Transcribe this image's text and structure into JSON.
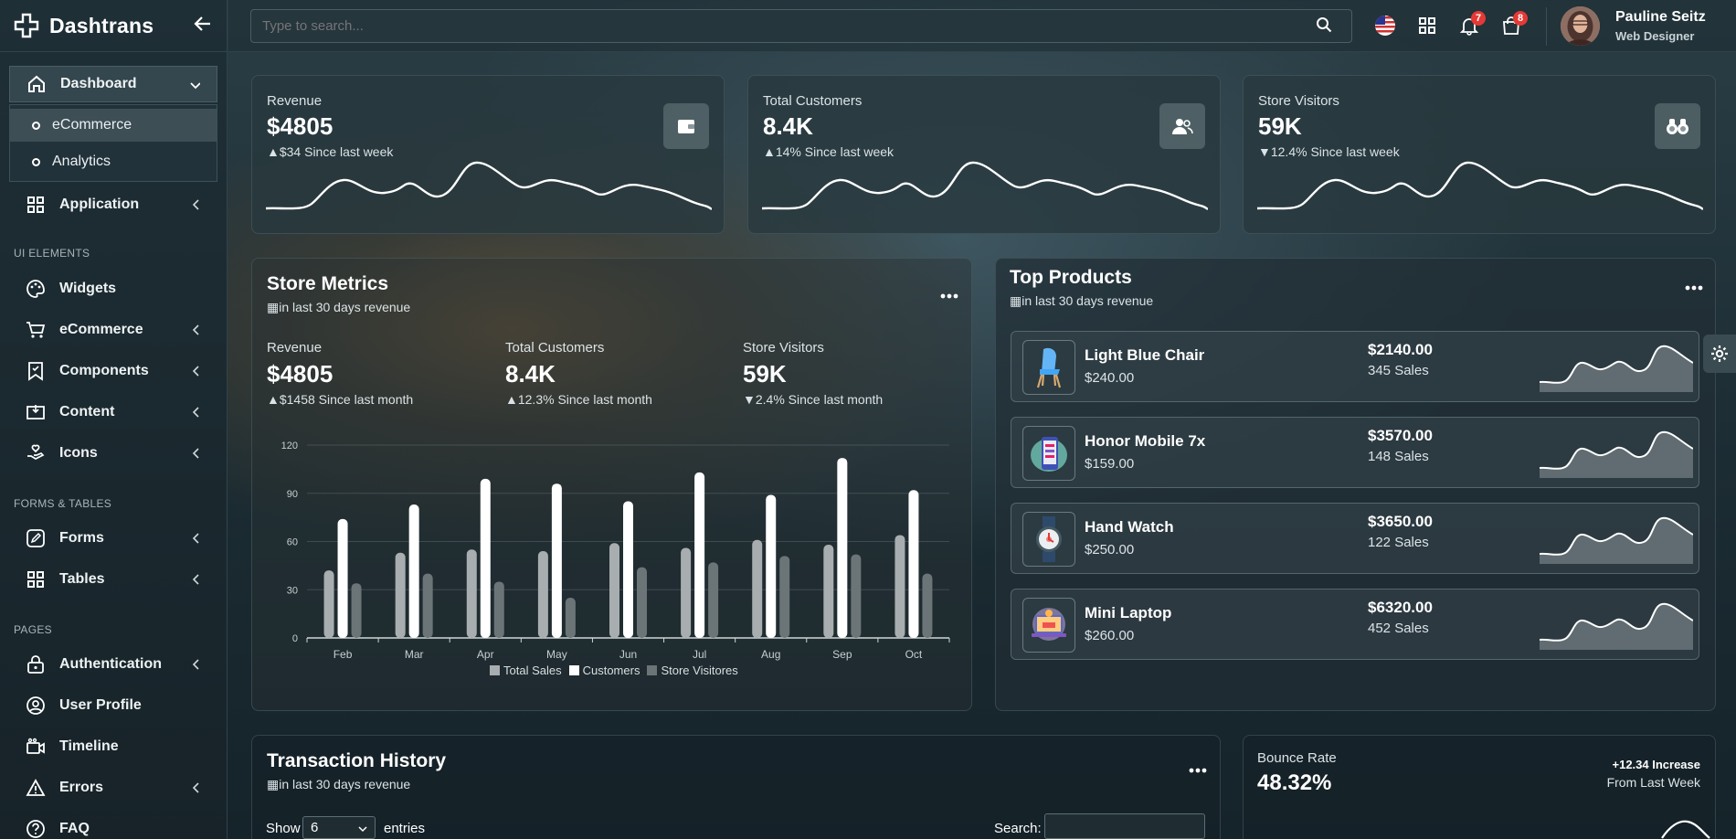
{
  "brand": {
    "name": "Dashtrans"
  },
  "sidebar": {
    "dashboard_label": "Dashboard",
    "submenu": [
      "eCommerce",
      "Analytics"
    ],
    "application_label": "Application",
    "section_ui": "UI ELEMENTS",
    "widgets_label": "Widgets",
    "ecommerce_label": "eCommerce",
    "components_label": "Components",
    "content_label": "Content",
    "icons_label": "Icons",
    "section_forms": "FORMS & TABLES",
    "forms_label": "Forms",
    "tables_label": "Tables",
    "section_pages": "PAGES",
    "authentication_label": "Authentication",
    "user_profile_label": "User Profile",
    "timeline_label": "Timeline",
    "errors_label": "Errors",
    "faq_label": "FAQ"
  },
  "topbar": {
    "search_placeholder": "Type to search...",
    "notifications_count": "7",
    "cart_count": "8",
    "user_name": "Pauline Seitz",
    "user_role": "Web Designer"
  },
  "kpis": [
    {
      "title": "Revenue",
      "value": "$4805",
      "change": "$34 Since last week",
      "trend": "up",
      "icon": "wallet-icon"
    },
    {
      "title": "Total Customers",
      "value": "8.4K",
      "change": "14% Since last week",
      "trend": "up",
      "icon": "users-icon"
    },
    {
      "title": "Store Visitors",
      "value": "59K",
      "change": "12.4% Since last week",
      "trend": "down",
      "icon": "binoculars-icon"
    }
  ],
  "store_metrics": {
    "title": "Store Metrics",
    "subtitle": "in last 30 days revenue",
    "stats": [
      {
        "label": "Revenue",
        "value": "$4805",
        "change": "$1458 Since last month",
        "trend": "up"
      },
      {
        "label": "Total Customers",
        "value": "8.4K",
        "change": "12.3% Since last month",
        "trend": "up"
      },
      {
        "label": "Store Visitors",
        "value": "59K",
        "change": "2.4% Since last month",
        "trend": "down"
      }
    ]
  },
  "chart_data": {
    "type": "bar",
    "categories": [
      "Feb",
      "Mar",
      "Apr",
      "May",
      "Jun",
      "Jul",
      "Aug",
      "Sep",
      "Oct"
    ],
    "ylim": [
      0,
      120
    ],
    "yticks": [
      0,
      30,
      60,
      90,
      120
    ],
    "grid": true,
    "legend_position": "bottom",
    "series": [
      {
        "name": "Total Sales",
        "color": "#a8aeb0",
        "values": [
          42,
          53,
          55,
          54,
          59,
          56,
          61,
          58,
          64
        ]
      },
      {
        "name": "Customers",
        "color": "#ffffff",
        "values": [
          74,
          83,
          99,
          96,
          85,
          103,
          89,
          112,
          92
        ]
      },
      {
        "name": "Store Visitores",
        "color": "#6b7578",
        "values": [
          34,
          40,
          35,
          25,
          44,
          47,
          51,
          52,
          40
        ]
      }
    ]
  },
  "top_products": {
    "title": "Top Products",
    "subtitle": "in last 30 days revenue",
    "items": [
      {
        "name": "Light Blue Chair",
        "price": "$240.00",
        "total": "$2140.00",
        "sales": "345 Sales",
        "icon": "chair-icon"
      },
      {
        "name": "Honor Mobile 7x",
        "price": "$159.00",
        "total": "$3570.00",
        "sales": "148 Sales",
        "icon": "mobile-icon"
      },
      {
        "name": "Hand Watch",
        "price": "$250.00",
        "total": "$3650.00",
        "sales": "122 Sales",
        "icon": "watch-icon"
      },
      {
        "name": "Mini Laptop",
        "price": "$260.00",
        "total": "$6320.00",
        "sales": "452 Sales",
        "icon": "laptop-icon"
      }
    ]
  },
  "transaction_history": {
    "title": "Transaction History",
    "subtitle": "in last 30 days revenue",
    "show_label": "Show",
    "entries_value": "6",
    "entries_label": "entries",
    "search_label": "Search:"
  },
  "bounce_rate": {
    "title": "Bounce Rate",
    "value": "48.32%",
    "increase": "+12.34 Increase",
    "from": "From Last Week"
  }
}
